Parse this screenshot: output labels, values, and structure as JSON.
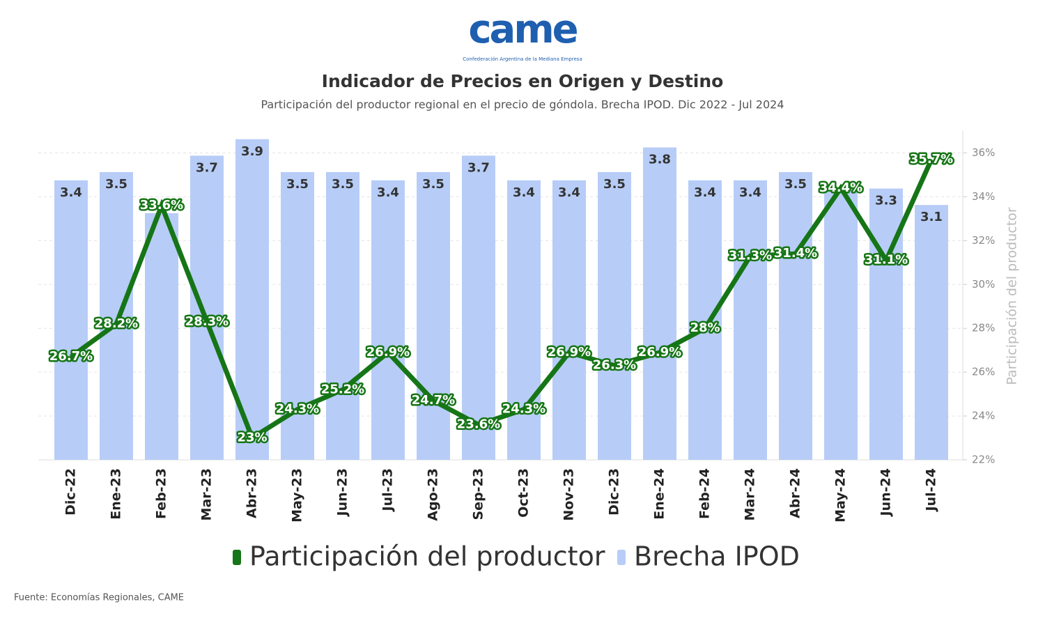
{
  "logo": {
    "text": "came",
    "tagline": "Confederación Argentina de la Mediana Empresa"
  },
  "chart_data": {
    "type": "bar-line",
    "title": "Indicador de Precios en Origen y Destino",
    "subtitle": "Participación del productor regional en el precio de góndola. Brecha IPOD. Dic 2022 - Jul 2024",
    "source": "Fuente: Economías Regionales, CAME",
    "y2label": "Participación del productor",
    "categories": [
      "Dic-22",
      "Ene-23",
      "Feb-23",
      "Mar-23",
      "Abr-23",
      "May-23",
      "Jun-23",
      "Jul-23",
      "Ago-23",
      "Sep-23",
      "Oct-23",
      "Nov-23",
      "Dic-23",
      "Ene-24",
      "Feb-24",
      "Mar-24",
      "Abr-24",
      "May-24",
      "Jun-24",
      "Jul-24"
    ],
    "ylim": [
      0,
      4
    ],
    "y2lim": [
      22,
      37
    ],
    "y2ticks": [
      {
        "value": 22,
        "label": "22%"
      },
      {
        "value": 24,
        "label": "24%"
      },
      {
        "value": 26,
        "label": "26%"
      },
      {
        "value": 28,
        "label": "28%"
      },
      {
        "value": 30,
        "label": "30%"
      },
      {
        "value": 32,
        "label": "32%"
      },
      {
        "value": 34,
        "label": "34%"
      },
      {
        "value": 36,
        "label": "36%"
      }
    ],
    "grid": true,
    "series": [
      {
        "name": "Participación del productor",
        "type": "line",
        "axis": "y2",
        "color": "#167516",
        "values": [
          26.7,
          28.2,
          33.6,
          28.3,
          23,
          24.3,
          25.2,
          26.9,
          24.7,
          23.6,
          24.3,
          26.9,
          26.3,
          26.9,
          28,
          31.3,
          31.4,
          34.4,
          31.1,
          35.7
        ],
        "value_labels": [
          "26.7%",
          "28.2%",
          "33.6%",
          "28.3%",
          "23%",
          "24.3%",
          "25.2%",
          "26.9%",
          "24.7%",
          "23.6%",
          "24.3%",
          "26.9%",
          "26.3%",
          "26.9%",
          "28%",
          "31.3%",
          "31.4%",
          "34.4%",
          "31.1%",
          "35.7%"
        ]
      },
      {
        "name": "Brecha IPOD",
        "type": "bar",
        "axis": "y",
        "color": "#b7cdf7",
        "values": [
          3.4,
          3.5,
          3.0,
          3.7,
          3.9,
          3.5,
          3.5,
          3.4,
          3.5,
          3.7,
          3.4,
          3.4,
          3.5,
          3.8,
          3.4,
          3.4,
          3.5,
          3.3,
          3.3,
          3.1
        ],
        "value_labels": [
          "3.4",
          "3.5",
          null,
          "3.7",
          "3.9",
          "3.5",
          "3.5",
          "3.4",
          "3.5",
          "3.7",
          "3.4",
          "3.4",
          "3.5",
          "3.8",
          "3.4",
          "3.4",
          "3.5",
          null,
          "3.3",
          "3.1"
        ]
      }
    ]
  }
}
